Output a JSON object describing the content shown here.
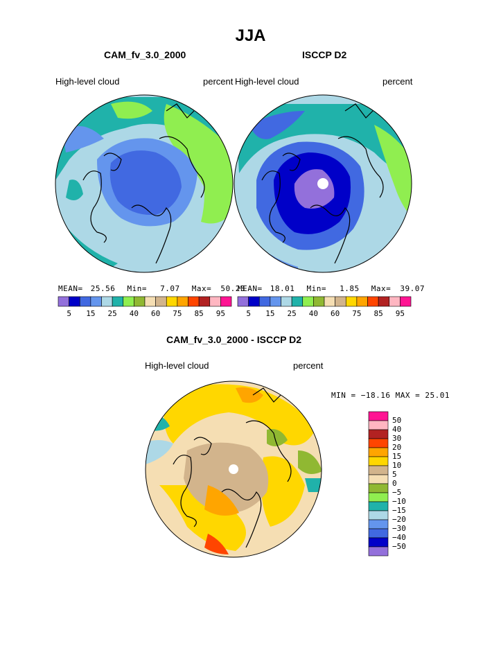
{
  "title": "JJA",
  "colors": {
    "abs_scale": [
      "#9370db",
      "#0000c8",
      "#4169e1",
      "#6495ed",
      "#add8e6",
      "#20b2aa",
      "#90ee50",
      "#90b832",
      "#f5deb3",
      "#d2b48c",
      "#ffd700",
      "#ffa500",
      "#ff4500",
      "#b22222",
      "#ffb6c1",
      "#ff1493"
    ],
    "diff_scale": [
      "#9370db",
      "#0000c8",
      "#4169e1",
      "#6495ed",
      "#add8e6",
      "#20b2aa",
      "#90ee50",
      "#90b832",
      "#f5deb3",
      "#d2b48c",
      "#ffd700",
      "#ffa500",
      "#ff4500",
      "#b22222",
      "#ffb6c1",
      "#ff1493"
    ]
  },
  "panels": {
    "left": {
      "title": "CAM_fv_3.0_2000",
      "variable": "High-level cloud",
      "units": "percent",
      "mean_label": "MEAN=",
      "mean": "25.56",
      "min_label": "Min=",
      "min": "7.07",
      "max_label": "Max=",
      "max": "50.23"
    },
    "right": {
      "title": "ISCCP D2",
      "variable": "High-level cloud",
      "units": "percent",
      "mean_label": "MEAN=",
      "mean": "18.01",
      "min_label": "Min=",
      "min": "1.85",
      "max_label": "Max=",
      "max": "39.07"
    },
    "diff": {
      "title": "CAM_fv_3.0_2000 - ISCCP D2",
      "variable": "High-level cloud",
      "units": "percent",
      "minmax_text": "MIN = −18.16  MAX =  25.01"
    }
  },
  "abs_ticks": [
    "5",
    "15",
    "25",
    "40",
    "60",
    "75",
    "85",
    "95"
  ],
  "diff_ticks": [
    "50",
    "40",
    "30",
    "20",
    "15",
    "10",
    "5",
    "0",
    "−5",
    "−10",
    "−15",
    "−20",
    "−30",
    "−40",
    "−50"
  ],
  "chart_data": [
    {
      "type": "heatmap",
      "title": "CAM_fv_3.0_2000",
      "subtitle": "High-level cloud",
      "units": "percent",
      "projection": "polar stereographic (north)",
      "stats": {
        "mean": 25.56,
        "min": 7.07,
        "max": 50.23
      },
      "colorbar_ticks": [
        5,
        15,
        25,
        40,
        60,
        75,
        85,
        95
      ]
    },
    {
      "type": "heatmap",
      "title": "ISCCP D2",
      "subtitle": "High-level cloud",
      "units": "percent",
      "projection": "polar stereographic (north)",
      "stats": {
        "mean": 18.01,
        "min": 1.85,
        "max": 39.07
      },
      "colorbar_ticks": [
        5,
        15,
        25,
        40,
        60,
        75,
        85,
        95
      ]
    },
    {
      "type": "heatmap",
      "title": "CAM_fv_3.0_2000 - ISCCP D2",
      "subtitle": "High-level cloud",
      "units": "percent",
      "projection": "polar stereographic (north)",
      "stats": {
        "min": -18.16,
        "max": 25.01
      },
      "colorbar_ticks": [
        50,
        40,
        30,
        20,
        15,
        10,
        5,
        0,
        -5,
        -10,
        -15,
        -20,
        -30,
        -40,
        -50
      ]
    }
  ]
}
